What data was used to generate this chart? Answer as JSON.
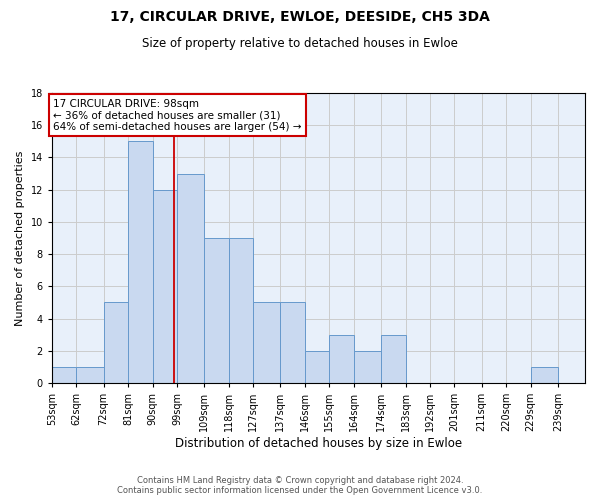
{
  "title": "17, CIRCULAR DRIVE, EWLOE, DEESIDE, CH5 3DA",
  "subtitle": "Size of property relative to detached houses in Ewloe",
  "xlabel": "Distribution of detached houses by size in Ewloe",
  "ylabel": "Number of detached properties",
  "footer_line1": "Contains HM Land Registry data © Crown copyright and database right 2024.",
  "footer_line2": "Contains public sector information licensed under the Open Government Licence v3.0.",
  "annotation_line1": "17 CIRCULAR DRIVE: 98sqm",
  "annotation_line2": "← 36% of detached houses are smaller (31)",
  "annotation_line3": "64% of semi-detached houses are larger (54) →",
  "bin_labels": [
    "53sqm",
    "62sqm",
    "72sqm",
    "81sqm",
    "90sqm",
    "99sqm",
    "109sqm",
    "118sqm",
    "127sqm",
    "137sqm",
    "146sqm",
    "155sqm",
    "164sqm",
    "174sqm",
    "183sqm",
    "192sqm",
    "201sqm",
    "211sqm",
    "220sqm",
    "229sqm",
    "239sqm"
  ],
  "bin_edges": [
    53,
    62,
    72,
    81,
    90,
    99,
    109,
    118,
    127,
    137,
    146,
    155,
    164,
    174,
    183,
    192,
    201,
    211,
    220,
    229,
    239
  ],
  "counts": [
    1,
    1,
    5,
    15,
    12,
    13,
    9,
    9,
    5,
    5,
    2,
    3,
    2,
    3,
    0,
    0,
    0,
    0,
    0,
    1,
    0
  ],
  "bar_color": "#c9d9f0",
  "bar_edge_color": "#6699cc",
  "vline_x": 98,
  "vline_color": "#cc0000",
  "ylim": [
    0,
    18
  ],
  "yticks": [
    0,
    2,
    4,
    6,
    8,
    10,
    12,
    14,
    16,
    18
  ],
  "grid_color": "#cccccc",
  "background_color": "#ffffff",
  "ax_background": "#e8f0fa",
  "annotation_box_edge": "#cc0000",
  "title_fontsize": 10,
  "subtitle_fontsize": 8.5,
  "xlabel_fontsize": 8.5,
  "ylabel_fontsize": 8,
  "tick_fontsize": 7,
  "footer_fontsize": 6,
  "annotation_fontsize": 7.5
}
